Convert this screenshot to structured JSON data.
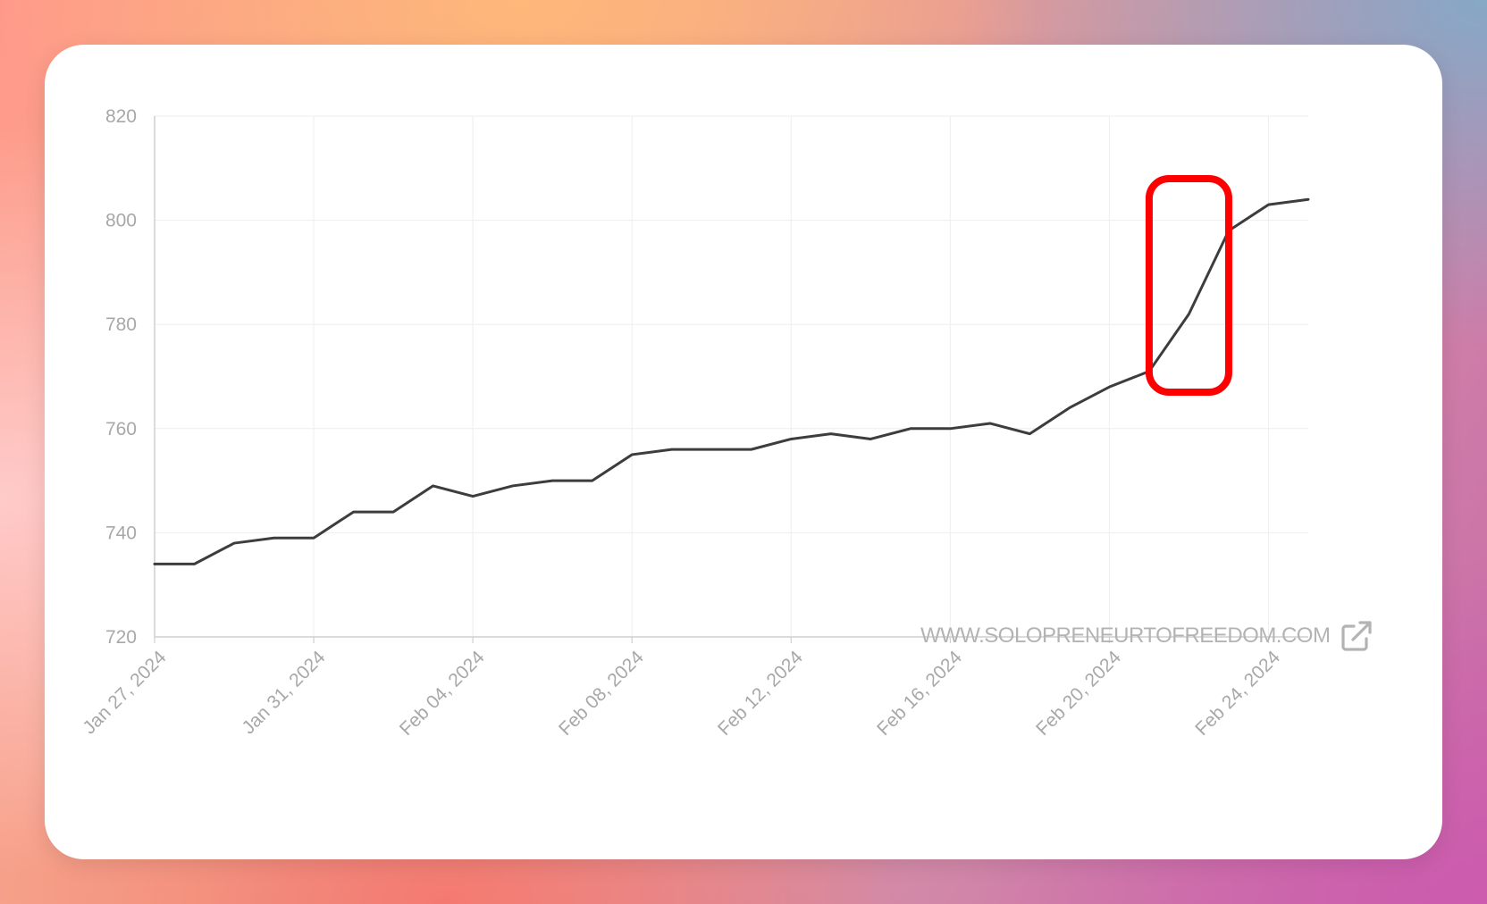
{
  "colors": {
    "line": "#3d3d3d",
    "highlight": "#ff0000",
    "grid": "#eeeeee",
    "axis": "#cfcfcf",
    "tick_text": "#a8a8a8"
  },
  "chart_data": {
    "type": "line",
    "title": "",
    "xlabel": "",
    "ylabel": "",
    "ylim": [
      720,
      820
    ],
    "yticks": [
      720,
      740,
      760,
      780,
      800,
      820
    ],
    "xlim": [
      "2024-01-27",
      "2024-02-25"
    ],
    "xtick_dates": [
      "2024-01-27",
      "2024-01-31",
      "2024-02-04",
      "2024-02-08",
      "2024-02-12",
      "2024-02-16",
      "2024-02-20",
      "2024-02-24"
    ],
    "xtick_labels": [
      "Jan 27, 2024",
      "Jan 31, 2024",
      "Feb 04, 2024",
      "Feb 08, 2024",
      "Feb 12, 2024",
      "Feb 16, 2024",
      "Feb 20, 2024",
      "Feb 24, 2024"
    ],
    "grid": true,
    "series": [
      {
        "x": [
          "2024-01-27",
          "2024-01-28",
          "2024-01-29",
          "2024-01-30",
          "2024-01-31",
          "2024-02-01",
          "2024-02-02",
          "2024-02-03",
          "2024-02-04",
          "2024-02-05",
          "2024-02-06",
          "2024-02-07",
          "2024-02-08",
          "2024-02-09",
          "2024-02-10",
          "2024-02-11",
          "2024-02-12",
          "2024-02-13",
          "2024-02-14",
          "2024-02-15",
          "2024-02-16",
          "2024-02-17",
          "2024-02-18",
          "2024-02-19",
          "2024-02-20",
          "2024-02-21",
          "2024-02-22",
          "2024-02-23",
          "2024-02-24",
          "2024-02-25"
        ],
        "values": [
          734,
          734,
          738,
          739,
          739,
          744,
          744,
          749,
          747,
          749,
          750,
          750,
          755,
          756,
          756,
          756,
          758,
          759,
          758,
          760,
          760,
          761,
          759,
          764,
          768,
          771,
          782,
          798,
          803,
          804
        ]
      }
    ],
    "annotations": [
      {
        "type": "highlight-box",
        "x_range": [
          "2024-02-21",
          "2024-02-23"
        ],
        "y_range": [
          767,
          808
        ]
      }
    ]
  },
  "watermark": {
    "text": "WWW.SOLOPRENEURTOFREEDOM.COM",
    "icon": "external-link-icon"
  }
}
